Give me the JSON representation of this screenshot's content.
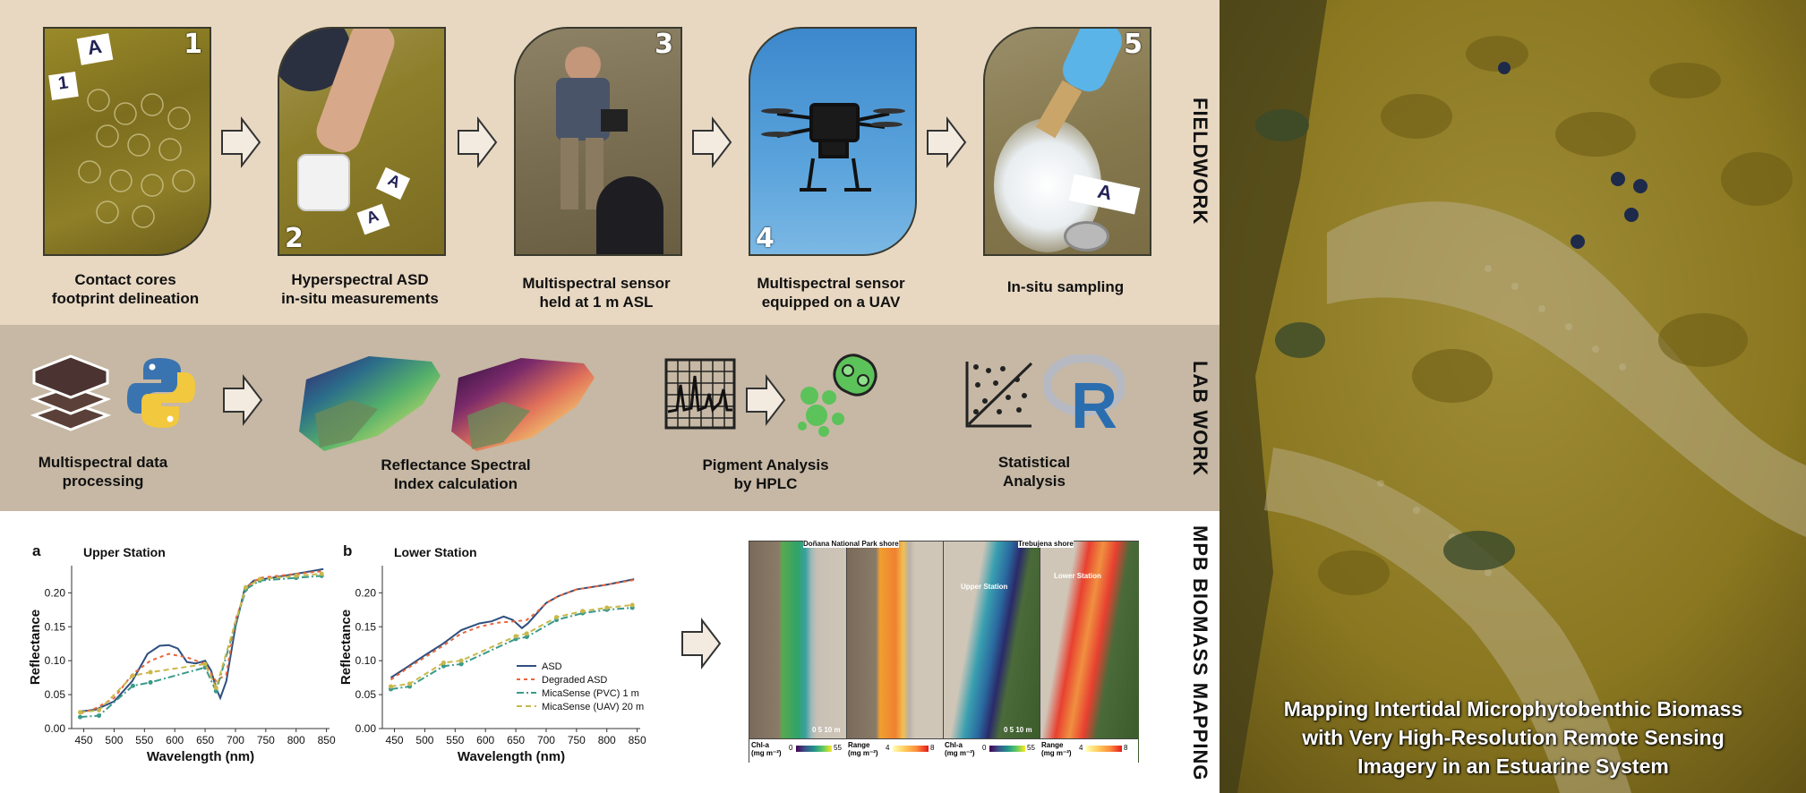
{
  "sections": {
    "fieldwork": "FIELDWORK",
    "lab_work": "LAB WORK",
    "mapping": "MPB BIOMASS MAPPING"
  },
  "fieldwork_steps": [
    {
      "number": "1",
      "caption_line1": "Contact cores",
      "caption_line2": "footprint delineation",
      "tags": [
        "A",
        "1"
      ]
    },
    {
      "number": "2",
      "caption_line1": "Hyperspectral ASD",
      "caption_line2": "in-situ measurements",
      "tags": [
        "A",
        "A"
      ]
    },
    {
      "number": "3",
      "caption_line1": "Multispectral sensor",
      "caption_line2": "held at 1 m ASL"
    },
    {
      "number": "4",
      "caption_line1": "Multispectral sensor",
      "caption_line2": "equipped on a UAV"
    },
    {
      "number": "5",
      "caption_line1": "In-situ sampling",
      "caption_line2": "",
      "tags": [
        "A"
      ]
    }
  ],
  "lab_steps": [
    {
      "caption_line1": "Multispectral data",
      "caption_line2": "processing",
      "icons": [
        "layers-icon",
        "python-logo-icon"
      ]
    },
    {
      "caption_line1": "Reflectance Spectral",
      "caption_line2": "Index calculation",
      "icons": [
        "index-map-icon"
      ]
    },
    {
      "caption_line1": "Pigment Analysis",
      "caption_line2": "by HPLC",
      "icons": [
        "chromatogram-icon",
        "algae-cells-icon"
      ]
    },
    {
      "caption_line1": "Statistical",
      "caption_line2": "Analysis",
      "icons": [
        "scatter-plot-icon",
        "r-logo-icon"
      ]
    }
  ],
  "chart_data": [
    {
      "type": "line",
      "panel": "a",
      "title": "Upper Station",
      "xlabel": "Wavelength (nm)",
      "ylabel": "Reflectance",
      "xlim": [
        430,
        855
      ],
      "ylim": [
        0.0,
        0.24
      ],
      "xticks": [
        450,
        500,
        550,
        600,
        650,
        700,
        750,
        800,
        850
      ],
      "yticks": [
        0.0,
        0.05,
        0.1,
        0.15,
        0.2
      ],
      "series": [
        {
          "name": "ASD",
          "color": "#2f4f7f",
          "dash": "",
          "x": [
            444,
            470,
            500,
            530,
            555,
            575,
            590,
            605,
            620,
            635,
            650,
            660,
            668,
            675,
            685,
            700,
            715,
            730,
            760,
            800,
            845
          ],
          "y": [
            0.025,
            0.028,
            0.04,
            0.07,
            0.11,
            0.122,
            0.123,
            0.118,
            0.098,
            0.096,
            0.1,
            0.085,
            0.06,
            0.045,
            0.07,
            0.15,
            0.205,
            0.218,
            0.222,
            0.228,
            0.235
          ]
        },
        {
          "name": "Degraded ASD",
          "color": "#e8663a",
          "dash": "4,4",
          "x": [
            444,
            470,
            500,
            530,
            560,
            590,
            620,
            650,
            668,
            685,
            700,
            720,
            740,
            770,
            800,
            845
          ],
          "y": [
            0.022,
            0.03,
            0.045,
            0.08,
            0.1,
            0.11,
            0.105,
            0.095,
            0.07,
            0.08,
            0.16,
            0.21,
            0.222,
            0.225,
            0.228,
            0.232
          ]
        },
        {
          "name": "MicaSense (PVC) 1 m",
          "color": "#3b9a8a",
          "dash": "8,3,2,3",
          "x": [
            444,
            475,
            531,
            560,
            650,
            668,
            717,
            740,
            800,
            842
          ],
          "y": [
            0.017,
            0.019,
            0.063,
            0.068,
            0.09,
            0.055,
            0.205,
            0.218,
            0.222,
            0.225
          ]
        },
        {
          "name": "MicaSense (UAV) 20 m",
          "color": "#c9b84a",
          "dash": "6,4",
          "x": [
            444,
            475,
            531,
            560,
            650,
            668,
            717,
            740,
            800,
            842
          ],
          "y": [
            0.024,
            0.027,
            0.078,
            0.083,
            0.095,
            0.06,
            0.208,
            0.22,
            0.225,
            0.228
          ]
        }
      ]
    },
    {
      "type": "line",
      "panel": "b",
      "title": "Lower Station",
      "xlabel": "Wavelength (nm)",
      "ylabel": "Reflectance",
      "xlim": [
        430,
        855
      ],
      "ylim": [
        0.0,
        0.24
      ],
      "xticks": [
        450,
        500,
        550,
        600,
        650,
        700,
        750,
        800,
        850
      ],
      "yticks": [
        0.0,
        0.05,
        0.1,
        0.15,
        0.2
      ],
      "series": [
        {
          "name": "ASD",
          "color": "#2f4f7f",
          "dash": "",
          "x": [
            444,
            470,
            500,
            530,
            560,
            590,
            610,
            630,
            645,
            660,
            670,
            685,
            700,
            720,
            750,
            800,
            845
          ],
          "y": [
            0.075,
            0.09,
            0.108,
            0.125,
            0.145,
            0.155,
            0.158,
            0.165,
            0.16,
            0.148,
            0.155,
            0.17,
            0.185,
            0.195,
            0.205,
            0.212,
            0.22
          ]
        },
        {
          "name": "Degraded ASD",
          "color": "#e8663a",
          "dash": "4,4",
          "x": [
            444,
            470,
            500,
            530,
            560,
            590,
            620,
            650,
            668,
            685,
            700,
            720,
            750,
            800,
            845
          ],
          "y": [
            0.072,
            0.088,
            0.105,
            0.122,
            0.14,
            0.15,
            0.156,
            0.158,
            0.16,
            0.172,
            0.185,
            0.195,
            0.205,
            0.212,
            0.219
          ]
        },
        {
          "name": "MicaSense (PVC) 1 m",
          "color": "#3b9a8a",
          "dash": "8,3,2,3",
          "x": [
            444,
            475,
            531,
            560,
            650,
            668,
            717,
            760,
            800,
            842
          ],
          "y": [
            0.058,
            0.062,
            0.092,
            0.095,
            0.132,
            0.135,
            0.16,
            0.17,
            0.175,
            0.178
          ]
        },
        {
          "name": "MicaSense (UAV) 20 m",
          "color": "#c9b84a",
          "dash": "6,4",
          "x": [
            444,
            475,
            531,
            560,
            650,
            668,
            717,
            760,
            800,
            842
          ],
          "y": [
            0.062,
            0.066,
            0.097,
            0.1,
            0.136,
            0.14,
            0.164,
            0.173,
            0.178,
            0.182
          ]
        }
      ]
    }
  ],
  "maps": {
    "shore_left": "Doñana National Park shore",
    "shore_right": "Trebujena shore",
    "station_upper": "Upper Station",
    "station_lower": "Lower Station",
    "scale": "0  5 10 m",
    "legends": [
      {
        "label": "Chl-a",
        "unit": "(mg m⁻²)",
        "min": "0",
        "max": "55",
        "palette": "viridis"
      },
      {
        "label": "Range",
        "unit": "(mg m⁻²)",
        "min": "4",
        "max": "8",
        "palette": "ylorrd"
      },
      {
        "label": "Chl-a",
        "unit": "(mg m⁻²)",
        "min": "0",
        "max": "55",
        "palette": "viridis"
      },
      {
        "label": "Range",
        "unit": "(mg m⁻²)",
        "min": "4",
        "max": "8",
        "palette": "ylorrd"
      }
    ]
  },
  "aerial_title_lines": [
    "Mapping Intertidal Microphytobenthic Biomass",
    "with Very High-Resolution Remote Sensing",
    "Imagery in an Estuarine System"
  ]
}
